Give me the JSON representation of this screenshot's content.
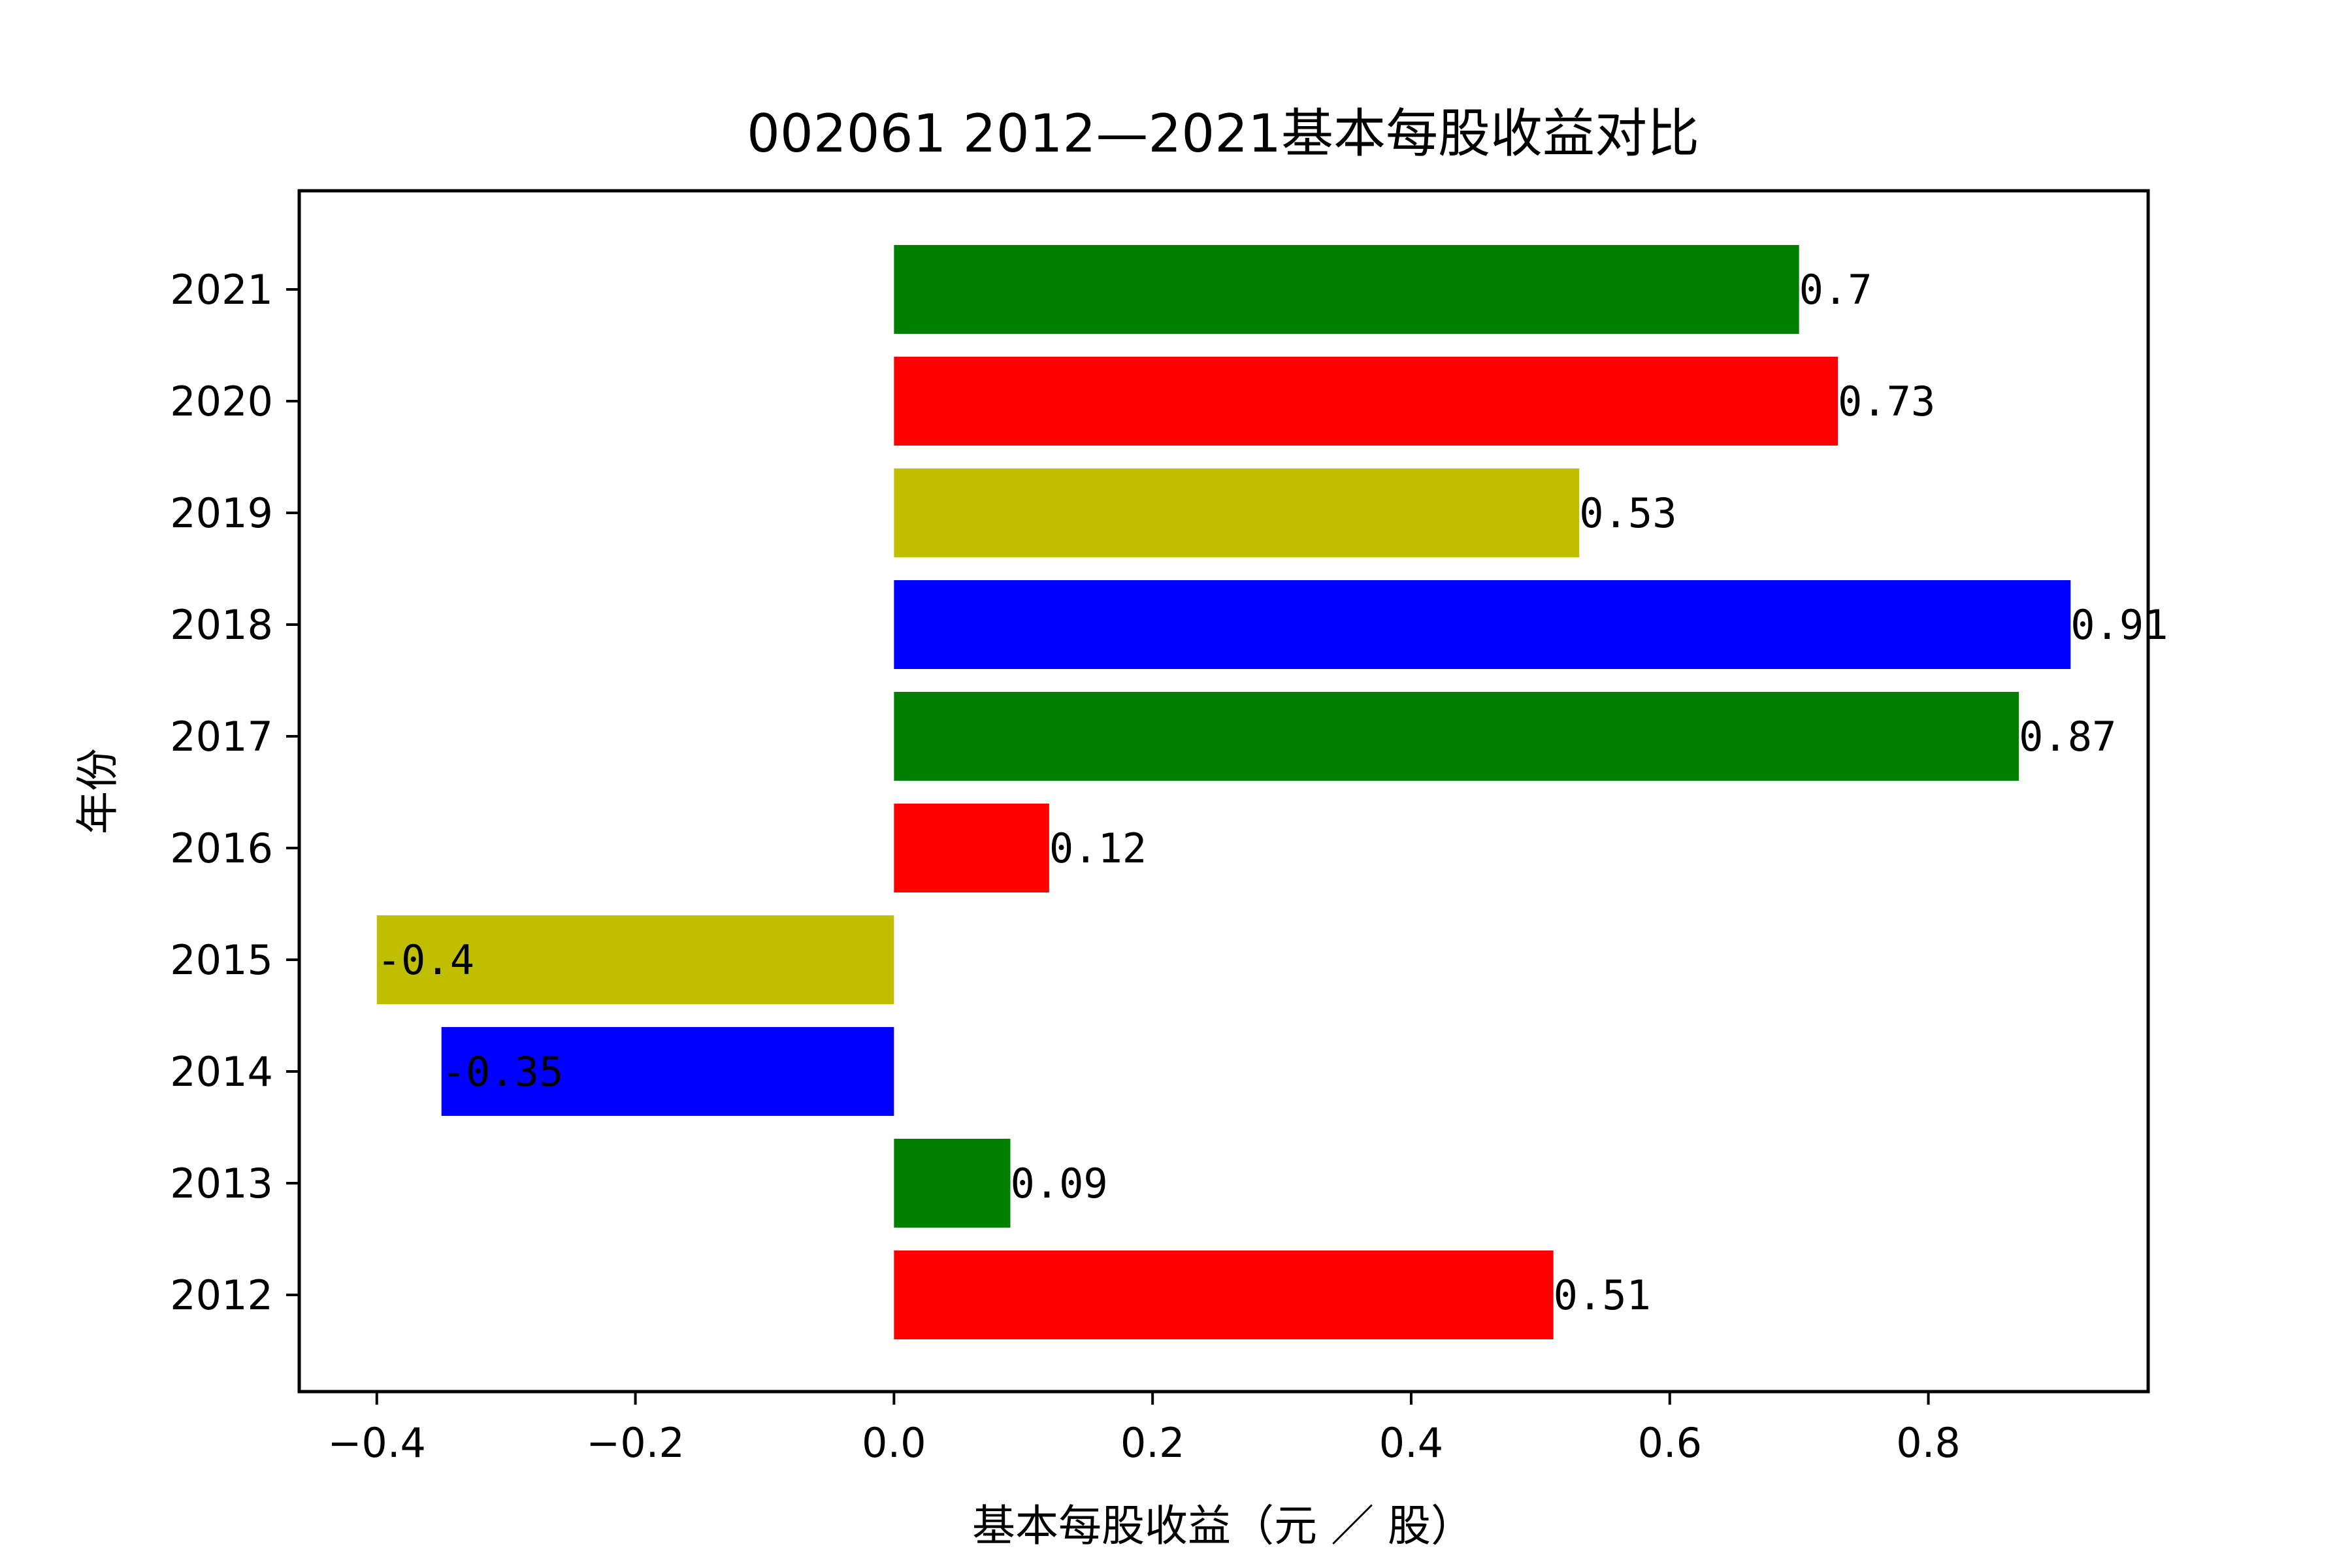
{
  "chart_data": {
    "type": "bar",
    "orientation": "horizontal",
    "title": "002061 2012—2021基本每股收益对比",
    "xlabel": "基本每股收益（元 ／ 股）",
    "ylabel": "年份",
    "categories": [
      "2012",
      "2013",
      "2014",
      "2015",
      "2016",
      "2017",
      "2018",
      "2019",
      "2020",
      "2021"
    ],
    "values": [
      0.51,
      0.09,
      -0.35,
      -0.4,
      0.12,
      0.87,
      0.91,
      0.53,
      0.73,
      0.7
    ],
    "value_labels": [
      "0.51",
      "0.09",
      "-0.35",
      "-0.4",
      "0.12",
      "0.87",
      "0.91",
      "0.53",
      "0.73",
      "0.7"
    ],
    "bar_colors": [
      "#ff0000",
      "#008000",
      "#0000ff",
      "#bfbf00",
      "#ff0000",
      "#008000",
      "#0000ff",
      "#bfbf00",
      "#ff0000",
      "#008000"
    ],
    "xlim": [
      -0.46,
      0.97
    ],
    "xticks": [
      -0.4,
      -0.2,
      0.0,
      0.2,
      0.4,
      0.6,
      0.8
    ],
    "xtick_labels": [
      "−0.4",
      "−0.2",
      "0.0",
      "0.2",
      "0.4",
      "0.6",
      "0.8"
    ],
    "grid": false,
    "legend": false
  }
}
